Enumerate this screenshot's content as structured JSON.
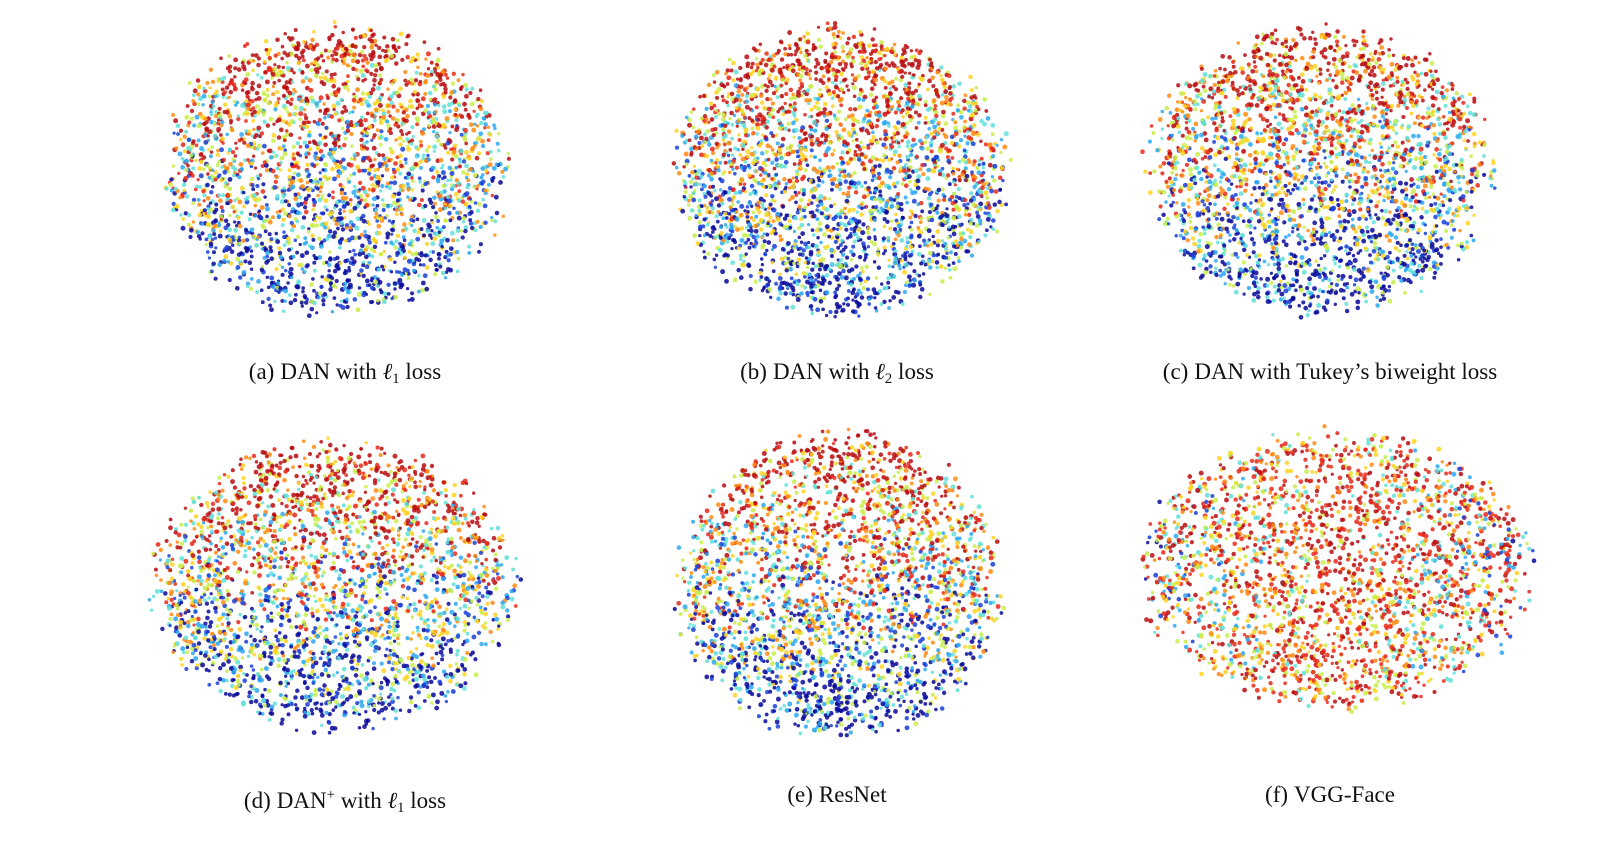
{
  "figure": {
    "panels": [
      {
        "label": "(a)",
        "pre": "DAN with ",
        "ell": "ℓ",
        "sub": "1",
        "sup": "",
        "post": " loss",
        "caption_text": "DAN with ℓ1 loss",
        "cloud": {
          "seed": 11,
          "count": 2600,
          "redTop": true,
          "colorDir": "vertical"
        }
      },
      {
        "label": "(b)",
        "pre": "DAN with ",
        "ell": "ℓ",
        "sub": "2",
        "sup": "",
        "post": " loss",
        "caption_text": "DAN with ℓ2 loss",
        "cloud": {
          "seed": 23,
          "count": 2800,
          "redTop": true,
          "colorDir": "vertical"
        }
      },
      {
        "label": "(c)",
        "pre": "DAN with Tukey’s biweight loss",
        "ell": "",
        "sub": "",
        "sup": "",
        "post": "",
        "caption_text": "DAN with Tukey’s biweight loss",
        "cloud": {
          "seed": 37,
          "count": 2700,
          "redTop": true,
          "colorDir": "vertical"
        }
      },
      {
        "label": "(d)",
        "pre": "DAN",
        "ell": "",
        "sub": "",
        "sup": "+",
        "post": " with ℓ",
        "post_sub": "1",
        "post2": " loss",
        "caption_text": "DAN+ with ℓ1 loss",
        "cloud": {
          "seed": 51,
          "count": 2600,
          "redTop": true,
          "colorDir": "vertical"
        }
      },
      {
        "label": "(e)",
        "pre": "ResNet",
        "ell": "",
        "sub": "",
        "sup": "",
        "post": "",
        "caption_text": "ResNet",
        "cloud": {
          "seed": 67,
          "count": 2600,
          "redTop": true,
          "colorDir": "vertical"
        }
      },
      {
        "label": "(f)",
        "pre": "VGG-Face",
        "ell": "",
        "sub": "",
        "sup": "",
        "post": "",
        "caption_text": "VGG-Face",
        "cloud": {
          "seed": 79,
          "count": 2400,
          "redTop": false,
          "colorDir": "mixed"
        }
      }
    ],
    "colormap": [
      "#08089a",
      "#1a3fd8",
      "#2aa8f0",
      "#5fe0d8",
      "#c8ef4a",
      "#ffd21e",
      "#ff8a10",
      "#e8281a",
      "#b80c10"
    ]
  }
}
